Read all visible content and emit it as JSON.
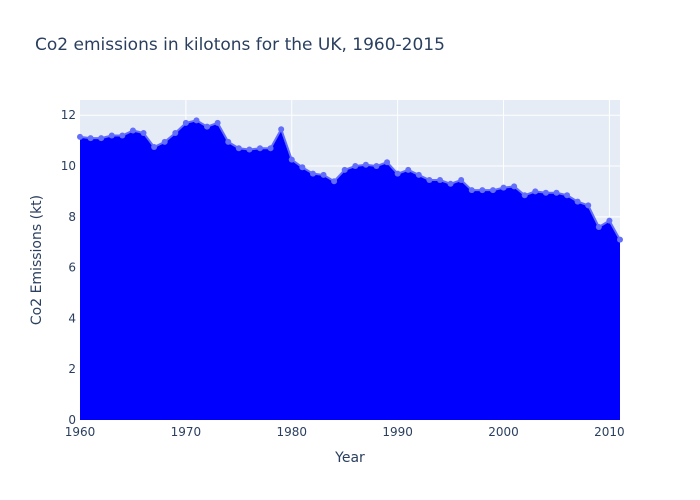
{
  "chart_data": {
    "type": "area",
    "title": "Co2 emissions in kilotons for the UK, 1960-2015",
    "xlabel": "Year",
    "ylabel": "Co2 Emissions (kt)",
    "xlim": [
      1960,
      2011
    ],
    "ylim": [
      0,
      12.6
    ],
    "x_ticks": [
      1960,
      1970,
      1980,
      1990,
      2000,
      2010
    ],
    "y_ticks": [
      0,
      2,
      4,
      6,
      8,
      10,
      12
    ],
    "grid": true,
    "legend": "none",
    "colors": {
      "fill": "#0000ff",
      "line": "#636efa",
      "plot_bg": "#e5ecf6",
      "grid": "#ffffff",
      "text": "#2a3f5f"
    },
    "series": [
      {
        "x": [
          1960,
          1961,
          1962,
          1963,
          1964,
          1965,
          1966,
          1967,
          1968,
          1969,
          1970,
          1971,
          1972,
          1973,
          1974,
          1975,
          1976,
          1977,
          1978,
          1979,
          1980,
          1981,
          1982,
          1983,
          1984,
          1985,
          1986,
          1987,
          1988,
          1989,
          1990,
          1991,
          1992,
          1993,
          1994,
          1995,
          1996,
          1997,
          1998,
          1999,
          2000,
          2001,
          2002,
          2003,
          2004,
          2005,
          2006,
          2007,
          2008,
          2009,
          2010,
          2011
        ],
        "y": [
          11.15,
          11.1,
          11.1,
          11.2,
          11.2,
          11.4,
          11.3,
          10.75,
          10.95,
          11.3,
          11.7,
          11.8,
          11.55,
          11.7,
          10.95,
          10.7,
          10.65,
          10.7,
          10.7,
          11.45,
          10.25,
          9.95,
          9.7,
          9.65,
          9.4,
          9.85,
          10.0,
          10.05,
          10.0,
          10.15,
          9.7,
          9.85,
          9.65,
          9.45,
          9.45,
          9.3,
          9.45,
          9.05,
          9.05,
          9.05,
          9.15,
          9.2,
          8.85,
          9.0,
          8.95,
          8.95,
          8.85,
          8.6,
          8.45,
          7.6,
          7.85,
          7.1
        ]
      }
    ]
  }
}
